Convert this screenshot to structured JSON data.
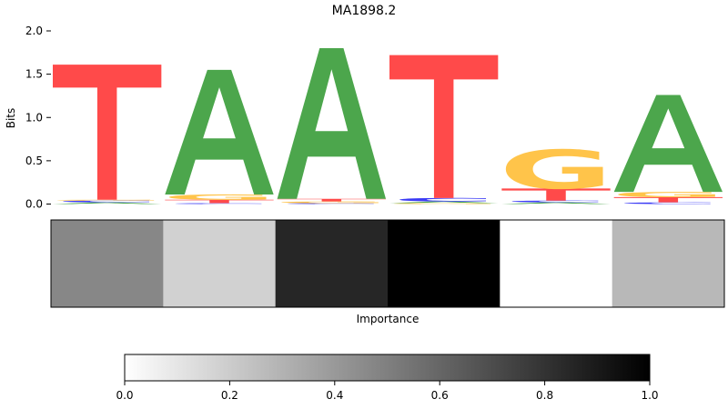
{
  "chart_data": [
    {
      "type": "sequence-logo",
      "title": "MA1898.2",
      "ylabel": "Bits",
      "ylim": [
        0,
        2.0
      ],
      "yticks": [
        "0.0",
        "0.5",
        "1.0",
        "1.5",
        "2.0"
      ],
      "grid": false,
      "colors": {
        "A": "#4ca64c",
        "C": "#3b3bf5",
        "G": "#ffc44a",
        "T": "#ff4a4a"
      },
      "positions": [
        {
          "position": 1,
          "bits": [
            {
              "base": "A",
              "value": 0.02
            },
            {
              "base": "C",
              "value": 0.02
            },
            {
              "base": "G",
              "value": 0.01
            },
            {
              "base": "T",
              "value": 1.56
            }
          ]
        },
        {
          "position": 2,
          "bits": [
            {
              "base": "C",
              "value": 0.01
            },
            {
              "base": "T",
              "value": 0.04
            },
            {
              "base": "G",
              "value": 0.06
            },
            {
              "base": "A",
              "value": 1.44
            }
          ]
        },
        {
          "position": 3,
          "bits": [
            {
              "base": "C",
              "value": 0.01
            },
            {
              "base": "G",
              "value": 0.02
            },
            {
              "base": "T",
              "value": 0.03
            },
            {
              "base": "A",
              "value": 1.74
            }
          ]
        },
        {
          "position": 4,
          "bits": [
            {
              "base": "G",
              "value": 0.01
            },
            {
              "base": "A",
              "value": 0.02
            },
            {
              "base": "C",
              "value": 0.04
            },
            {
              "base": "T",
              "value": 1.65
            }
          ]
        },
        {
          "position": 5,
          "bits": [
            {
              "base": "A",
              "value": 0.02
            },
            {
              "base": "C",
              "value": 0.02
            },
            {
              "base": "T",
              "value": 0.14
            },
            {
              "base": "G",
              "value": 0.45
            }
          ]
        },
        {
          "position": 6,
          "bits": [
            {
              "base": "C",
              "value": 0.02
            },
            {
              "base": "T",
              "value": 0.06
            },
            {
              "base": "G",
              "value": 0.06
            },
            {
              "base": "A",
              "value": 1.12
            }
          ]
        }
      ]
    },
    {
      "type": "heatmap",
      "xlabel": "Importance",
      "colormap": "gray_r",
      "values": [
        0.47,
        0.18,
        0.85,
        1.0,
        0.0,
        0.28
      ]
    },
    {
      "type": "colorbar",
      "range": [
        0.0,
        1.0
      ],
      "ticks": [
        "0.0",
        "0.2",
        "0.4",
        "0.6",
        "0.8",
        "1.0"
      ]
    }
  ]
}
